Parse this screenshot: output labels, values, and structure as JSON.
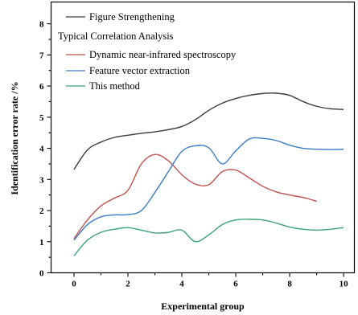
{
  "chart_data": {
    "type": "line",
    "xlabel": "Experimental group",
    "ylabel": "Identification error rate /%",
    "xlim": [
      -0.85,
      10.4
    ],
    "ylim": [
      0,
      8.7
    ],
    "xticks": [
      0,
      2,
      4,
      6,
      8,
      10
    ],
    "yticks": [
      0,
      1,
      2,
      3,
      4,
      5,
      6,
      7,
      8
    ],
    "grid": false,
    "legend_position": "top-left",
    "legend_header": "Typical Correlation Analysis",
    "series": [
      {
        "name": "Figure Strengthening",
        "color": "#3a3a3a",
        "x": [
          0,
          0.5,
          1,
          1.5,
          2,
          2.5,
          3,
          3.5,
          4,
          4.5,
          5,
          5.5,
          6,
          6.5,
          7,
          7.5,
          8,
          8.5,
          9,
          9.5,
          10
        ],
        "y": [
          3.32,
          3.95,
          4.2,
          4.35,
          4.42,
          4.48,
          4.53,
          4.6,
          4.7,
          4.92,
          5.22,
          5.45,
          5.6,
          5.7,
          5.76,
          5.77,
          5.7,
          5.5,
          5.35,
          5.27,
          5.25
        ]
      },
      {
        "name": "Dynamic near-infrared spectroscopy",
        "color": "#c0504d",
        "x": [
          0,
          0.5,
          1,
          1.5,
          2,
          2.5,
          3,
          3.5,
          4,
          4.5,
          5,
          5.5,
          6,
          6.5,
          7,
          7.5,
          8,
          8.5,
          9
        ],
        "y": [
          1.1,
          1.7,
          2.15,
          2.4,
          2.65,
          3.5,
          3.8,
          3.6,
          3.15,
          2.85,
          2.83,
          3.25,
          3.3,
          3.05,
          2.78,
          2.6,
          2.5,
          2.42,
          2.3
        ]
      },
      {
        "name": "Feature vector extraction",
        "color": "#3b7dc4",
        "x": [
          0,
          0.5,
          1,
          1.5,
          2,
          2.5,
          3,
          3.5,
          4,
          4.5,
          5,
          5.5,
          6,
          6.5,
          7,
          7.5,
          8,
          8.5,
          9,
          9.5,
          10
        ],
        "y": [
          1.05,
          1.55,
          1.8,
          1.86,
          1.87,
          2.0,
          2.58,
          3.25,
          3.9,
          4.08,
          4.02,
          3.5,
          3.92,
          4.3,
          4.32,
          4.25,
          4.1,
          4.0,
          3.97,
          3.96,
          3.97
        ]
      },
      {
        "name": "This method",
        "color": "#3aa37a",
        "x": [
          0,
          0.5,
          1,
          1.5,
          2,
          2.5,
          3,
          3.5,
          4,
          4.5,
          5,
          5.5,
          6,
          6.5,
          7,
          7.5,
          8,
          8.5,
          9,
          9.5,
          10
        ],
        "y": [
          0.55,
          1.05,
          1.3,
          1.4,
          1.45,
          1.37,
          1.28,
          1.3,
          1.37,
          1.0,
          1.22,
          1.55,
          1.7,
          1.72,
          1.7,
          1.6,
          1.47,
          1.4,
          1.37,
          1.4,
          1.45
        ]
      }
    ]
  }
}
